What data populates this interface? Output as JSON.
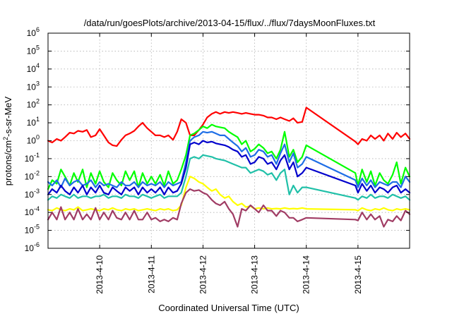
{
  "chart_data": {
    "type": "line",
    "title": "/data/run/goesPlots/archive/2013-04-15/flux/../flux/7daysMoonFluxes.txt",
    "xlabel": "Coordinated Universal Time (UTC)",
    "ylabel_parts": [
      "protons/cm",
      "2",
      "-s-sr-MeV"
    ],
    "x_unit": "days",
    "xlim": [
      0,
      7
    ],
    "ylim_log10": [
      -6,
      6
    ],
    "y_scale": "log",
    "grid": true,
    "x_ticks": [
      {
        "x": 1,
        "label": "2013-4-10"
      },
      {
        "x": 2,
        "label": "2013-4-11"
      },
      {
        "x": 3,
        "label": "2013-4-12"
      },
      {
        "x": 4,
        "label": "2013-4-13"
      },
      {
        "x": 5,
        "label": "2013-4-14"
      },
      {
        "x": 6,
        "label": "2013-4-15"
      }
    ],
    "y_ticks": [
      {
        "exp": -6,
        "base": "10",
        "sup": "-6"
      },
      {
        "exp": -5,
        "base": "10",
        "sup": "-5"
      },
      {
        "exp": -4,
        "base": "10",
        "sup": "-4"
      },
      {
        "exp": -3,
        "base": "10",
        "sup": "-3"
      },
      {
        "exp": -2,
        "base": "10",
        "sup": "-2"
      },
      {
        "exp": -1,
        "base": "10",
        "sup": "-1"
      },
      {
        "exp": 0,
        "base": "10",
        "sup": "0"
      },
      {
        "exp": 1,
        "base": "10",
        "sup": "1"
      },
      {
        "exp": 2,
        "base": "10",
        "sup": "2"
      },
      {
        "exp": 3,
        "base": "10",
        "sup": "3"
      },
      {
        "exp": 4,
        "base": "10",
        "sup": "4"
      },
      {
        "exp": 5,
        "base": "10",
        "sup": "5"
      },
      {
        "exp": 6,
        "base": "10",
        "sup": "6"
      }
    ],
    "series": [
      {
        "color": "#ff0000",
        "x": [
          0.0,
          0.08,
          0.17,
          0.25,
          0.33,
          0.42,
          0.5,
          0.58,
          0.67,
          0.75,
          0.83,
          0.92,
          1.0,
          1.08,
          1.17,
          1.25,
          1.33,
          1.42,
          1.5,
          1.58,
          1.67,
          1.75,
          1.83,
          1.92,
          2.0,
          2.08,
          2.17,
          2.25,
          2.33,
          2.42,
          2.5,
          2.58,
          2.67,
          2.75,
          2.83,
          2.92,
          3.0,
          3.08,
          3.17,
          3.25,
          3.33,
          3.42,
          3.5,
          3.58,
          3.67,
          3.75,
          3.83,
          3.92,
          4.0,
          4.08,
          4.17,
          4.25,
          4.33,
          4.42,
          4.5,
          4.58,
          4.67,
          4.75,
          4.83,
          4.92,
          5.0,
          5.95,
          6.0,
          6.08,
          6.17,
          6.25,
          6.33,
          6.42,
          6.5,
          6.58,
          6.67,
          6.75,
          6.83,
          6.92,
          7.0
        ],
        "log10": [
          0.0,
          -0.1,
          0.1,
          0.0,
          0.2,
          0.45,
          0.4,
          0.55,
          0.5,
          0.6,
          0.2,
          0.3,
          0.65,
          0.3,
          -0.1,
          -0.25,
          -0.3,
          0.05,
          0.3,
          0.4,
          0.55,
          0.8,
          1.0,
          0.7,
          0.5,
          0.3,
          0.3,
          0.2,
          0.3,
          0.05,
          0.5,
          1.2,
          1.0,
          0.3,
          0.3,
          0.6,
          0.9,
          1.3,
          1.5,
          1.6,
          1.5,
          1.6,
          1.55,
          1.6,
          1.55,
          1.5,
          1.55,
          1.5,
          1.45,
          1.45,
          1.4,
          1.3,
          1.3,
          1.2,
          1.3,
          1.2,
          1.1,
          1.25,
          1.0,
          1.05,
          1.85,
          -0.05,
          -0.2,
          0.1,
          0.0,
          0.3,
          0.1,
          0.3,
          0.0,
          0.4,
          0.1,
          0.45,
          0.2,
          0.4,
          0.1
        ]
      },
      {
        "color": "#00ff00",
        "x": [
          0.0,
          0.08,
          0.17,
          0.25,
          0.33,
          0.42,
          0.5,
          0.58,
          0.67,
          0.75,
          0.83,
          0.92,
          1.0,
          1.08,
          1.17,
          1.25,
          1.33,
          1.42,
          1.5,
          1.58,
          1.67,
          1.75,
          1.83,
          1.92,
          2.0,
          2.08,
          2.17,
          2.25,
          2.33,
          2.42,
          2.5,
          2.58,
          2.67,
          2.75,
          2.83,
          2.92,
          3.0,
          3.08,
          3.17,
          3.25,
          3.33,
          3.42,
          3.5,
          3.58,
          3.67,
          3.75,
          3.83,
          3.92,
          4.0,
          4.08,
          4.17,
          4.25,
          4.33,
          4.42,
          4.5,
          4.58,
          4.67,
          4.75,
          4.83,
          4.92,
          5.0,
          5.95,
          6.0,
          6.08,
          6.17,
          6.25,
          6.33,
          6.42,
          6.5,
          6.58,
          6.67,
          6.75,
          6.83,
          6.92,
          7.0
        ],
        "log10": [
          -2.7,
          -2.2,
          -2.4,
          -1.6,
          -2.0,
          -2.5,
          -1.8,
          -2.3,
          -1.6,
          -2.6,
          -1.8,
          -2.4,
          -1.7,
          -2.3,
          -2.6,
          -1.8,
          -2.2,
          -2.5,
          -1.7,
          -2.2,
          -1.7,
          -2.6,
          -1.8,
          -2.4,
          -2.0,
          -2.4,
          -1.9,
          -2.5,
          -1.7,
          -2.4,
          -2.2,
          -1.6,
          -0.8,
          0.3,
          0.4,
          0.6,
          0.8,
          0.7,
          0.9,
          0.8,
          0.75,
          0.7,
          0.5,
          0.35,
          0.2,
          -0.2,
          0.0,
          -0.6,
          -0.45,
          -0.2,
          -0.4,
          -0.7,
          -0.6,
          -1.0,
          -0.5,
          0.5,
          -0.9,
          -0.5,
          -1.2,
          -0.9,
          -0.25,
          -1.8,
          -2.5,
          -1.6,
          -2.3,
          -1.7,
          -2.5,
          -1.8,
          -2.2,
          -2.4,
          -1.9,
          -1.2,
          -2.4,
          -1.5,
          -2.0
        ]
      },
      {
        "color": "#1e6ee6",
        "x": [
          0.0,
          0.08,
          0.17,
          0.25,
          0.33,
          0.42,
          0.5,
          0.58,
          0.67,
          0.75,
          0.83,
          0.92,
          1.0,
          1.08,
          1.17,
          1.25,
          1.33,
          1.42,
          1.5,
          1.58,
          1.67,
          1.75,
          1.83,
          1.92,
          2.0,
          2.08,
          2.17,
          2.25,
          2.33,
          2.42,
          2.5,
          2.58,
          2.67,
          2.75,
          2.83,
          2.92,
          3.0,
          3.08,
          3.17,
          3.25,
          3.33,
          3.42,
          3.5,
          3.58,
          3.67,
          3.75,
          3.83,
          3.92,
          4.0,
          4.08,
          4.17,
          4.25,
          4.33,
          4.42,
          4.5,
          4.58,
          4.67,
          4.75,
          4.83,
          4.92,
          5.0,
          5.95,
          6.0,
          6.08,
          6.17,
          6.25,
          6.33,
          6.42,
          6.5,
          6.58,
          6.67,
          6.75,
          6.83,
          6.92,
          7.0
        ],
        "log10": [
          -2.3,
          -2.5,
          -2.2,
          -2.6,
          -2.1,
          -2.5,
          -2.3,
          -2.2,
          -2.5,
          -2.4,
          -2.2,
          -2.6,
          -2.3,
          -2.5,
          -2.4,
          -2.5,
          -2.6,
          -2.3,
          -2.5,
          -2.5,
          -2.3,
          -2.6,
          -2.3,
          -2.5,
          -2.4,
          -2.5,
          -2.3,
          -2.6,
          -2.3,
          -2.5,
          -2.4,
          -2.3,
          -1.2,
          0.0,
          0.2,
          0.3,
          0.5,
          0.45,
          0.5,
          0.4,
          0.3,
          0.3,
          0.1,
          -0.1,
          -0.3,
          -0.6,
          -0.4,
          -0.9,
          -0.8,
          -0.5,
          -0.6,
          -0.9,
          -0.8,
          -1.3,
          -0.7,
          -0.2,
          -1.2,
          -0.7,
          -1.5,
          -1.3,
          -0.9,
          -2.2,
          -2.6,
          -2.1,
          -2.5,
          -2.2,
          -2.6,
          -2.3,
          -2.4,
          -2.5,
          -2.3,
          -2.3,
          -2.6,
          -2.0,
          -2.3
        ]
      },
      {
        "color": "#0000cc",
        "x": [
          0.0,
          0.08,
          0.17,
          0.25,
          0.33,
          0.42,
          0.5,
          0.58,
          0.67,
          0.75,
          0.83,
          0.92,
          1.0,
          1.08,
          1.17,
          1.25,
          1.33,
          1.42,
          1.5,
          1.58,
          1.67,
          1.75,
          1.83,
          1.92,
          2.0,
          2.08,
          2.17,
          2.25,
          2.33,
          2.42,
          2.5,
          2.58,
          2.67,
          2.75,
          2.83,
          2.92,
          3.0,
          3.08,
          3.17,
          3.25,
          3.33,
          3.42,
          3.5,
          3.58,
          3.67,
          3.75,
          3.83,
          3.92,
          4.0,
          4.08,
          4.17,
          4.25,
          4.33,
          4.42,
          4.5,
          4.58,
          4.67,
          4.75,
          4.83,
          4.92,
          5.0,
          5.95,
          6.0,
          6.08,
          6.17,
          6.25,
          6.33,
          6.42,
          6.5,
          6.58,
          6.67,
          6.75,
          6.83,
          6.92,
          7.0
        ],
        "log10": [
          -3.0,
          -2.7,
          -2.9,
          -2.5,
          -2.8,
          -3.0,
          -2.6,
          -2.9,
          -2.5,
          -3.0,
          -2.6,
          -2.9,
          -2.5,
          -2.9,
          -3.0,
          -2.6,
          -2.8,
          -3.0,
          -2.6,
          -2.8,
          -2.6,
          -3.0,
          -2.6,
          -2.9,
          -2.7,
          -2.9,
          -2.6,
          -3.0,
          -2.6,
          -2.9,
          -2.8,
          -2.4,
          -1.5,
          -0.2,
          -0.1,
          -0.2,
          0.0,
          -0.1,
          -0.05,
          -0.15,
          -0.2,
          -0.25,
          -0.35,
          -0.5,
          -0.6,
          -0.9,
          -0.8,
          -1.3,
          -1.2,
          -0.9,
          -1.0,
          -1.3,
          -1.2,
          -1.6,
          -1.1,
          -0.8,
          -1.6,
          -1.2,
          -2.0,
          -1.8,
          -1.5,
          -2.5,
          -2.9,
          -2.4,
          -2.8,
          -2.5,
          -2.9,
          -2.6,
          -2.7,
          -2.9,
          -2.6,
          -2.5,
          -2.9,
          -2.7,
          -2.9
        ]
      },
      {
        "color": "#20c0a8",
        "x": [
          0.0,
          0.08,
          0.17,
          0.25,
          0.33,
          0.42,
          0.5,
          0.58,
          0.67,
          0.75,
          0.83,
          0.92,
          1.0,
          1.08,
          1.17,
          1.25,
          1.33,
          1.42,
          1.5,
          1.58,
          1.67,
          1.75,
          1.83,
          1.92,
          2.0,
          2.08,
          2.17,
          2.25,
          2.33,
          2.42,
          2.5,
          2.58,
          2.67,
          2.75,
          2.83,
          2.92,
          3.0,
          3.08,
          3.17,
          3.25,
          3.33,
          3.42,
          3.5,
          3.58,
          3.67,
          3.75,
          3.83,
          3.92,
          4.0,
          4.08,
          4.17,
          4.25,
          4.33,
          4.42,
          4.5,
          4.58,
          4.67,
          4.75,
          4.83,
          4.92,
          5.0,
          5.95,
          6.0,
          6.08,
          6.17,
          6.25,
          6.33,
          6.42,
          6.5,
          6.58,
          6.67,
          6.75,
          6.83,
          6.92,
          7.0
        ],
        "log10": [
          -3.3,
          -3.1,
          -3.2,
          -3.0,
          -3.1,
          -3.2,
          -3.0,
          -3.2,
          -3.1,
          -3.1,
          -3.2,
          -3.1,
          -3.1,
          -3.0,
          -3.2,
          -3.1,
          -3.1,
          -3.2,
          -3.0,
          -3.1,
          -3.1,
          -3.2,
          -3.0,
          -3.1,
          -3.2,
          -3.1,
          -3.0,
          -3.2,
          -3.1,
          -3.1,
          -3.1,
          -2.9,
          -2.0,
          -1.0,
          -0.9,
          -1.0,
          -0.8,
          -0.85,
          -0.9,
          -1.0,
          -1.05,
          -1.1,
          -1.2,
          -1.3,
          -1.4,
          -1.5,
          -1.5,
          -1.8,
          -1.7,
          -1.6,
          -1.7,
          -1.9,
          -1.8,
          -2.2,
          -1.8,
          -1.6,
          -3.0,
          -2.5,
          -2.9,
          -2.6,
          -2.6,
          -3.2,
          -3.3,
          -3.1,
          -3.2,
          -3.0,
          -3.2,
          -3.1,
          -3.1,
          -3.2,
          -3.0,
          -3.1,
          -3.2,
          -3.1,
          -3.3
        ]
      },
      {
        "color": "#ffff00",
        "x": [
          0.0,
          0.08,
          0.17,
          0.25,
          0.33,
          0.42,
          0.5,
          0.58,
          0.67,
          0.75,
          0.83,
          0.92,
          1.0,
          1.08,
          1.17,
          1.25,
          1.33,
          1.42,
          1.5,
          1.58,
          1.67,
          1.75,
          1.83,
          1.92,
          2.0,
          2.08,
          2.17,
          2.25,
          2.33,
          2.42,
          2.5,
          2.58,
          2.67,
          2.75,
          2.83,
          2.92,
          3.0,
          3.08,
          3.17,
          3.25,
          3.33,
          3.42,
          3.5,
          3.58,
          3.67,
          3.75,
          3.83,
          3.92,
          4.0,
          4.08,
          4.17,
          4.25,
          4.33,
          4.42,
          4.5,
          4.58,
          4.67,
          4.75,
          4.83,
          4.92,
          5.0,
          5.95,
          6.0,
          6.08,
          6.17,
          6.25,
          6.33,
          6.42,
          6.5,
          6.58,
          6.67,
          6.75,
          6.83,
          6.92,
          7.0
        ],
        "log10": [
          -3.85,
          -3.9,
          -3.75,
          -3.85,
          -3.9,
          -3.8,
          -3.85,
          -3.7,
          -3.9,
          -3.85,
          -3.8,
          -3.85,
          -3.9,
          -3.8,
          -3.85,
          -3.75,
          -3.85,
          -3.9,
          -3.8,
          -3.85,
          -3.8,
          -3.9,
          -3.85,
          -3.8,
          -3.85,
          -3.9,
          -3.8,
          -3.85,
          -3.8,
          -3.9,
          -3.85,
          -3.6,
          -2.6,
          -2.0,
          -2.1,
          -2.3,
          -2.4,
          -2.6,
          -2.8,
          -2.7,
          -3.0,
          -3.2,
          -3.1,
          -3.4,
          -3.6,
          -3.5,
          -3.7,
          -3.65,
          -3.8,
          -3.75,
          -3.8,
          -3.75,
          -3.8,
          -3.78,
          -3.8,
          -3.75,
          -3.8,
          -3.78,
          -3.8,
          -3.75,
          -3.8,
          -3.85,
          -3.9,
          -3.75,
          -3.85,
          -3.9,
          -3.8,
          -3.85,
          -3.75,
          -3.85,
          -3.9,
          -3.8,
          -3.85,
          -3.8,
          -3.85
        ]
      },
      {
        "color": "#a03c64",
        "x": [
          0.0,
          0.08,
          0.17,
          0.25,
          0.33,
          0.42,
          0.5,
          0.58,
          0.67,
          0.75,
          0.83,
          0.92,
          1.0,
          1.08,
          1.17,
          1.25,
          1.33,
          1.42,
          1.5,
          1.58,
          1.67,
          1.75,
          1.83,
          1.92,
          2.0,
          2.08,
          2.17,
          2.25,
          2.33,
          2.42,
          2.5,
          2.58,
          2.67,
          2.75,
          2.83,
          2.92,
          3.0,
          3.08,
          3.17,
          3.25,
          3.33,
          3.42,
          3.5,
          3.58,
          3.67,
          3.75,
          3.83,
          3.92,
          4.0,
          4.08,
          4.17,
          4.25,
          4.33,
          4.42,
          4.5,
          4.58,
          4.67,
          4.75,
          4.83,
          4.92,
          5.0,
          5.95,
          6.0,
          6.08,
          6.17,
          6.25,
          6.33,
          6.42,
          6.5,
          6.58,
          6.67,
          6.75,
          6.83,
          6.92,
          7.0
        ],
        "log10": [
          -4.4,
          -4.0,
          -4.4,
          -3.7,
          -4.4,
          -4.0,
          -4.4,
          -3.8,
          -4.4,
          -4.1,
          -4.4,
          -3.75,
          -4.4,
          -4.0,
          -4.4,
          -3.9,
          -4.3,
          -4.4,
          -4.0,
          -4.4,
          -3.9,
          -4.4,
          -4.4,
          -4.0,
          -4.4,
          -4.3,
          -4.5,
          -4.4,
          -4.5,
          -4.3,
          -4.4,
          -3.5,
          -2.9,
          -2.7,
          -2.8,
          -2.75,
          -2.9,
          -3.0,
          -3.3,
          -3.5,
          -3.6,
          -3.4,
          -3.8,
          -4.1,
          -4.8,
          -3.8,
          -3.9,
          -3.6,
          -3.8,
          -4.0,
          -3.6,
          -3.9,
          -3.9,
          -4.2,
          -3.9,
          -4.0,
          -4.3,
          -4.3,
          -4.5,
          -4.4,
          -4.3,
          -4.4,
          -4.45,
          -4.0,
          -4.4,
          -4.1,
          -4.4,
          -4.2,
          -4.8,
          -4.4,
          -4.5,
          -4.2,
          -4.45,
          -3.9,
          -4.1
        ]
      }
    ]
  }
}
